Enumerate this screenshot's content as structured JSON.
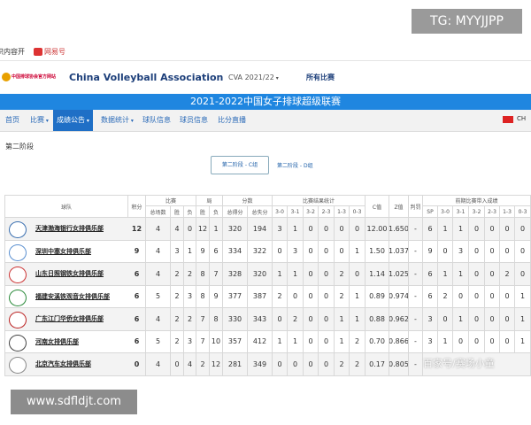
{
  "overlay": {
    "tag": "TG: MYYJJPP",
    "site": "www.sdfldjt.com",
    "watermark": "百家号/赛场小童"
  },
  "topbar": {
    "left": "识内容开",
    "netease": "网易号"
  },
  "header": {
    "logo_text": "中国排球协会官方网站",
    "org": "China Volleyball Association",
    "season": "CVA 2021/22",
    "all_matches": "所有比赛"
  },
  "banner": {
    "title": "2021-2022中国女子排球超级联赛"
  },
  "nav": {
    "items": [
      "首页",
      "比赛",
      "成绩公告",
      "数据统计",
      "球队信息",
      "球员信息",
      "比分直播"
    ],
    "lang": "CH"
  },
  "stage": {
    "title": "第二阶段",
    "tabs": [
      "第二阶段 - C组",
      "第二阶段 - D组"
    ]
  },
  "table": {
    "team_header": "球队",
    "groups": [
      "积分",
      "比赛",
      "局",
      "分数",
      "比赛结果统计",
      "C值",
      "Z值",
      "判罚",
      "前期比赛带入成绩"
    ],
    "subheaders": [
      "总场数",
      "胜",
      "负",
      "胜",
      "负",
      "总得分",
      "总失分",
      "3-0",
      "3-1",
      "3-2",
      "2-3",
      "1-3",
      "0-3",
      "SP",
      "3-0",
      "3-1",
      "3-2",
      "2-3",
      "1-3",
      "0-3"
    ],
    "rows": [
      {
        "team": "天津渤海银行女排俱乐部",
        "cells": [
          "12",
          "4",
          "4",
          "0",
          "12",
          "1",
          "320",
          "194",
          "3",
          "1",
          "0",
          "0",
          "0",
          "0",
          "12.00",
          "1.650",
          "-",
          "6",
          "1",
          "1",
          "0",
          "0",
          "0",
          "0"
        ]
      },
      {
        "team": "深圳中塞女排俱乐部",
        "cells": [
          "9",
          "4",
          "3",
          "1",
          "9",
          "6",
          "334",
          "322",
          "0",
          "3",
          "0",
          "0",
          "0",
          "1",
          "1.50",
          "1.037",
          "-",
          "9",
          "0",
          "3",
          "0",
          "0",
          "0",
          "0"
        ]
      },
      {
        "team": "山东日照钢铁女排俱乐部",
        "cells": [
          "6",
          "4",
          "2",
          "2",
          "8",
          "7",
          "328",
          "320",
          "1",
          "1",
          "0",
          "0",
          "2",
          "0",
          "1.14",
          "1.025",
          "-",
          "6",
          "1",
          "1",
          "0",
          "0",
          "2",
          "0"
        ]
      },
      {
        "team": "福建安溪铁观音女排俱乐部",
        "cells": [
          "6",
          "5",
          "2",
          "3",
          "8",
          "9",
          "377",
          "387",
          "2",
          "0",
          "0",
          "0",
          "2",
          "1",
          "0.89",
          "0.974",
          "-",
          "6",
          "2",
          "0",
          "0",
          "0",
          "0",
          "1"
        ]
      },
      {
        "team": "广东江门华侨女排俱乐部",
        "cells": [
          "6",
          "4",
          "2",
          "2",
          "7",
          "8",
          "330",
          "343",
          "0",
          "2",
          "0",
          "0",
          "1",
          "1",
          "0.88",
          "0.962",
          "-",
          "3",
          "0",
          "1",
          "0",
          "0",
          "0",
          "1"
        ]
      },
      {
        "team": "河南女排俱乐部",
        "cells": [
          "6",
          "5",
          "2",
          "3",
          "7",
          "10",
          "357",
          "412",
          "1",
          "1",
          "0",
          "0",
          "1",
          "2",
          "0.70",
          "0.866",
          "-",
          "3",
          "1",
          "0",
          "0",
          "0",
          "0",
          "1"
        ]
      },
      {
        "team": "北京汽车女排俱乐部",
        "cells": [
          "0",
          "4",
          "0",
          "4",
          "2",
          "12",
          "281",
          "349",
          "0",
          "0",
          "0",
          "0",
          "2",
          "2",
          "0.17",
          "0.805",
          "-"
        ]
      }
    ]
  }
}
